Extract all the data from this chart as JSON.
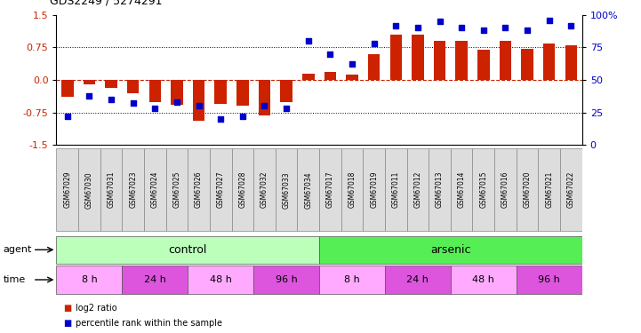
{
  "title": "GDS2249 / 5274291",
  "samples": [
    "GSM67029",
    "GSM67030",
    "GSM67031",
    "GSM67023",
    "GSM67024",
    "GSM67025",
    "GSM67026",
    "GSM67027",
    "GSM67028",
    "GSM67032",
    "GSM67033",
    "GSM67034",
    "GSM67017",
    "GSM67018",
    "GSM67019",
    "GSM67011",
    "GSM67012",
    "GSM67013",
    "GSM67014",
    "GSM67015",
    "GSM67016",
    "GSM67020",
    "GSM67021",
    "GSM67022"
  ],
  "log2_ratio": [
    -0.38,
    -0.1,
    -0.18,
    -0.3,
    -0.52,
    -0.58,
    -0.95,
    -0.55,
    -0.6,
    -0.82,
    -0.52,
    0.15,
    0.18,
    0.12,
    0.6,
    1.05,
    1.05,
    0.9,
    0.9,
    0.7,
    0.9,
    0.72,
    0.85,
    0.8
  ],
  "percentile_rank": [
    22,
    38,
    35,
    32,
    28,
    33,
    30,
    20,
    22,
    30,
    28,
    80,
    70,
    62,
    78,
    92,
    90,
    95,
    90,
    88,
    90,
    88,
    96,
    92
  ],
  "agent_groups": [
    {
      "label": "control",
      "start": 0,
      "end": 11,
      "color": "#bbffbb"
    },
    {
      "label": "arsenic",
      "start": 12,
      "end": 23,
      "color": "#55ee55"
    }
  ],
  "time_groups": [
    {
      "label": "8 h",
      "start": 0,
      "end": 2,
      "color": "#ffaaff"
    },
    {
      "label": "24 h",
      "start": 3,
      "end": 5,
      "color": "#dd55dd"
    },
    {
      "label": "48 h",
      "start": 6,
      "end": 8,
      "color": "#ffaaff"
    },
    {
      "label": "96 h",
      "start": 9,
      "end": 11,
      "color": "#dd55dd"
    },
    {
      "label": "8 h",
      "start": 12,
      "end": 14,
      "color": "#ffaaff"
    },
    {
      "label": "24 h",
      "start": 15,
      "end": 17,
      "color": "#dd55dd"
    },
    {
      "label": "48 h",
      "start": 18,
      "end": 20,
      "color": "#ffaaff"
    },
    {
      "label": "96 h",
      "start": 21,
      "end": 23,
      "color": "#dd55dd"
    }
  ],
  "bar_color": "#cc2200",
  "dot_color": "#0000cc",
  "ylim": [
    -1.5,
    1.5
  ],
  "yticks_left": [
    -1.5,
    -0.75,
    0.0,
    0.75,
    1.5
  ],
  "yticks_right": [
    0,
    25,
    50,
    75,
    100
  ],
  "bar_width": 0.55,
  "dot_size": 18,
  "sample_box_color": "#dddddd",
  "sample_box_edge": "#888888"
}
